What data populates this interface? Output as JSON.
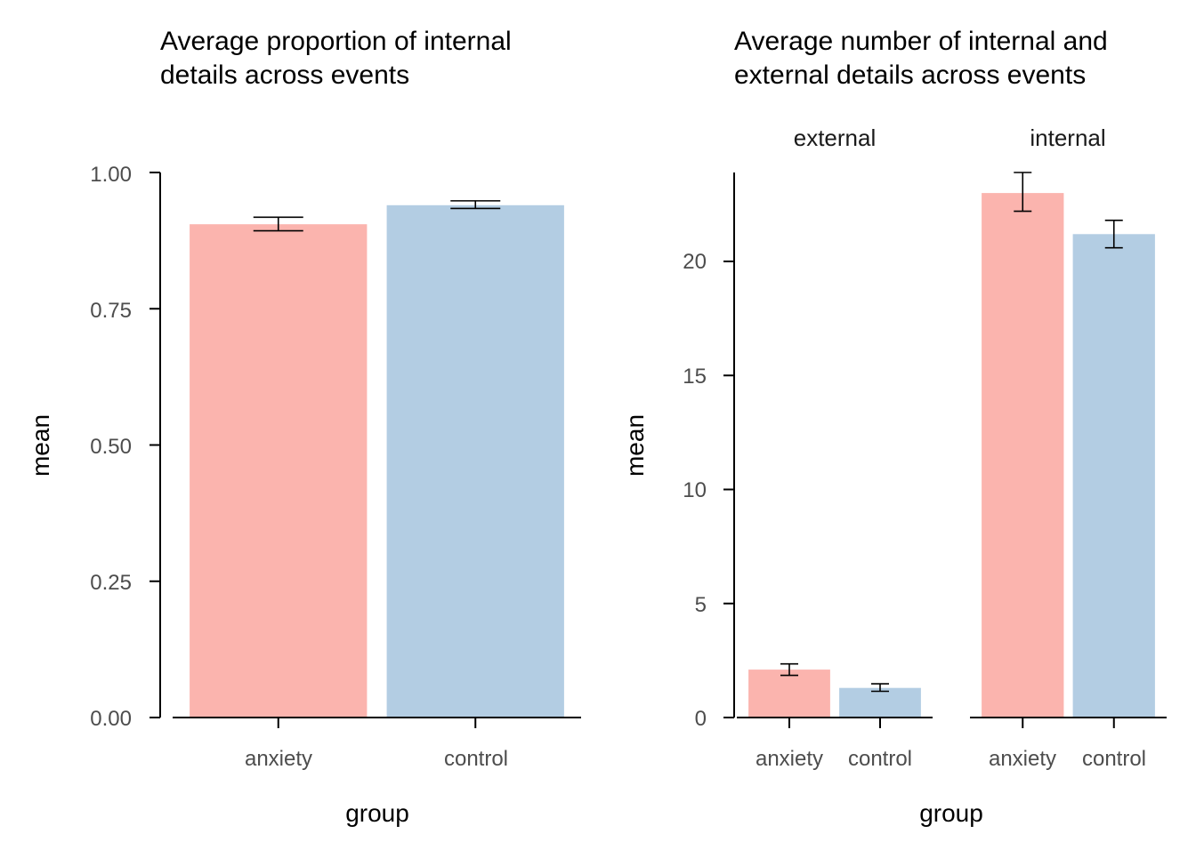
{
  "colors": {
    "anxiety": "#FBB4AE",
    "control": "#B3CDE3",
    "axis": "#000000",
    "errorbar": "#000000",
    "tick_text": "#4d4d4d"
  },
  "chart_data": [
    {
      "type": "bar",
      "title_lines": [
        "Average proportion of internal",
        "details across events"
      ],
      "xlabel": "group",
      "ylabel": "mean",
      "ylim": [
        0,
        1
      ],
      "yticks": [
        0,
        0.25,
        0.5,
        0.75,
        1
      ],
      "ytick_labels": [
        "0.00",
        "0.25",
        "0.50",
        "0.75",
        "1.00"
      ],
      "categories": [
        "anxiety",
        "control"
      ],
      "values": [
        0.905,
        0.94
      ],
      "errors": [
        {
          "low": 0.893,
          "high": 0.918
        },
        {
          "low": 0.934,
          "high": 0.948
        }
      ],
      "grid": false,
      "legend": "none"
    },
    {
      "type": "bar",
      "title_lines": [
        "Average number of internal and",
        "external details across events"
      ],
      "xlabel": "group",
      "ylabel": "mean",
      "ylim": [
        0,
        23.9
      ],
      "yticks": [
        0,
        5,
        10,
        15,
        20
      ],
      "ytick_labels": [
        "0",
        "5",
        "10",
        "15",
        "20"
      ],
      "grid": false,
      "legend": "none",
      "facets": [
        {
          "label": "external",
          "categories": [
            "anxiety",
            "control"
          ],
          "values": [
            2.1,
            1.3
          ],
          "errors": [
            {
              "low": 1.85,
              "high": 2.35
            },
            {
              "low": 1.15,
              "high": 1.48
            }
          ]
        },
        {
          "label": "internal",
          "categories": [
            "anxiety",
            "control"
          ],
          "values": [
            23.0,
            21.2
          ],
          "errors": [
            {
              "low": 22.2,
              "high": 23.9
            },
            {
              "low": 20.6,
              "high": 21.8
            }
          ]
        }
      ]
    }
  ]
}
